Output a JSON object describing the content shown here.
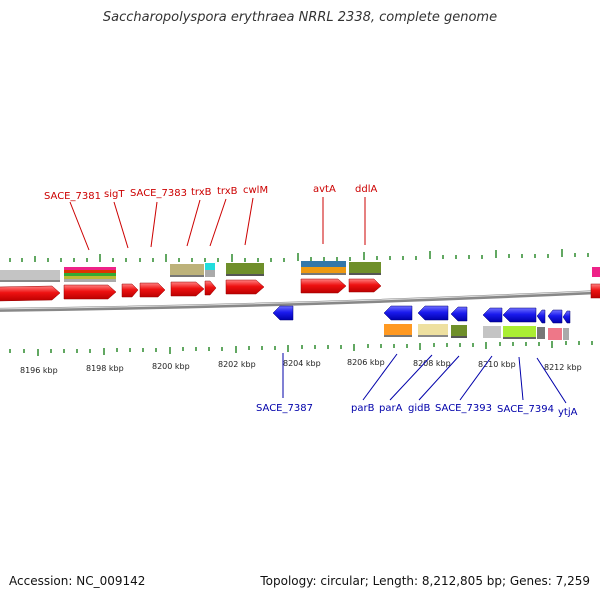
{
  "title": "Saccharopolyspora erythraea NRRL 2338, complete genome",
  "accession": "Accession: NC_009142",
  "topology": "Topology: circular; Length: 8,212,805 bp; Genes: 7,259",
  "colors": {
    "gene_label_top": "#cc0000",
    "gene_label_bottom": "#0000aa",
    "forward_gene": "#ee1111",
    "reverse_gene": "#1a1aee",
    "tick": "#2e8b2e",
    "backbone": "#888888"
  },
  "axis_ticks": [
    "8196 kbp",
    "8198 kbp",
    "8200 kbp",
    "8202 kbp",
    "8204 kbp",
    "8206 kbp",
    "8208 kbp",
    "8210 kbp",
    "8212 kbp"
  ],
  "top_genes": [
    "SACE_7381",
    "sigT",
    "SACE_7383",
    "trxB",
    "trxB",
    "cwlM",
    "avtA",
    "ddlA"
  ],
  "bottom_genes": [
    "SACE_7387",
    "parB",
    "parA",
    "gidB",
    "SACE_7393",
    "SACE_7394",
    "ytjA"
  ]
}
